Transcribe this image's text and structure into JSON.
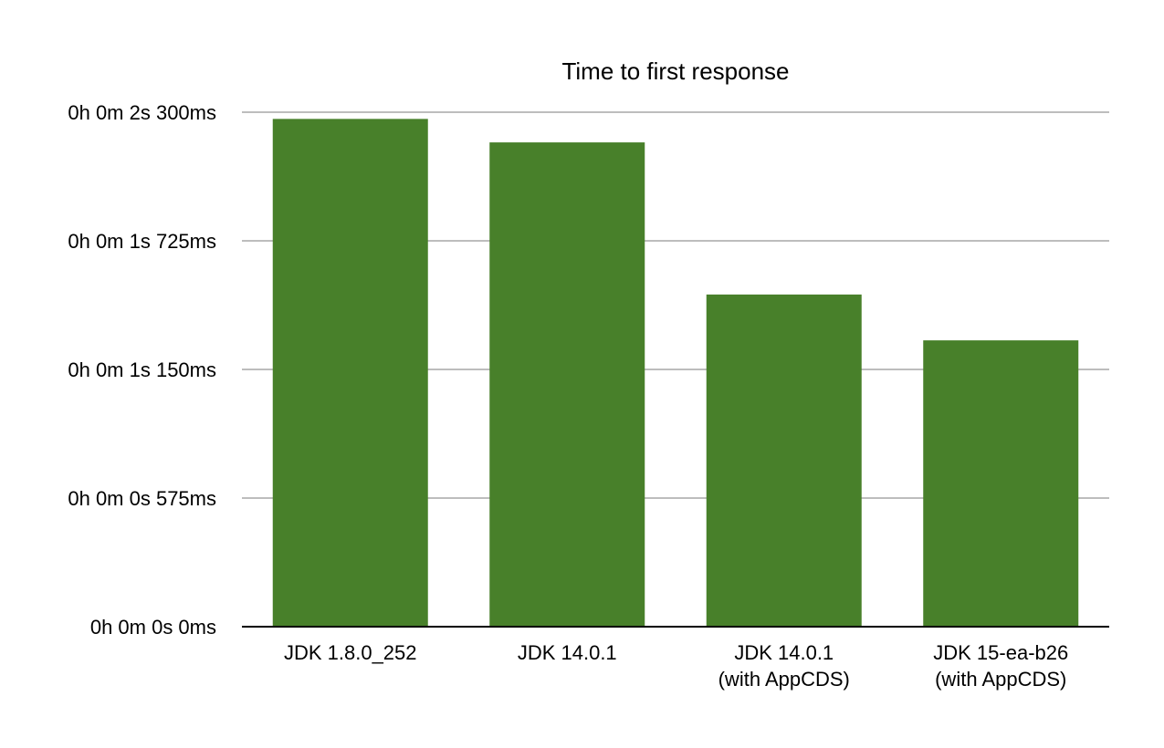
{
  "chart_data": {
    "type": "bar",
    "title": "Time to first response",
    "xlabel": "",
    "ylabel": "",
    "categories": [
      [
        "JDK 1.8.0_252"
      ],
      [
        "JDK 14.0.1"
      ],
      [
        "JDK 14.0.1",
        "(with AppCDS)"
      ],
      [
        "JDK 15-ea-b26",
        "(with AppCDS)"
      ]
    ],
    "values": [
      2270,
      2165,
      1485,
      1280
    ],
    "value_unit": "ms",
    "ylim": [
      0,
      2300
    ],
    "y_ticks": [
      0,
      575,
      1150,
      1725,
      2300
    ],
    "y_tick_labels": [
      "0h 0m 0s 0ms",
      "0h 0m 0s 575ms",
      "0h 0m 1s 150ms",
      "0h 0m 1s 725ms",
      "0h 0m 2s 300ms"
    ],
    "grid": true,
    "legend": "none",
    "bar_color": "#48802a",
    "grid_color": "#bdbdbd",
    "axis_color": "#000000"
  }
}
